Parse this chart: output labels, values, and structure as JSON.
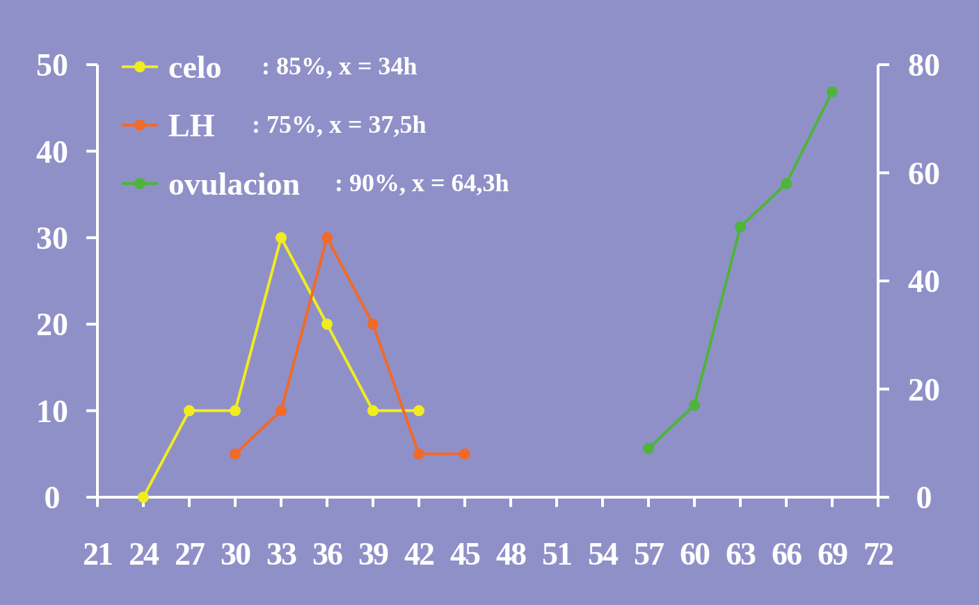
{
  "chart_data": {
    "type": "line",
    "series": [
      {
        "name": "celo",
        "color": "#f0ec20",
        "x": [
          24,
          27,
          30,
          33,
          36,
          39,
          42
        ],
        "values": [
          0,
          10,
          10,
          30,
          20,
          10,
          10
        ]
      },
      {
        "name": "LH",
        "color": "#f06a28",
        "x": [
          30,
          33,
          36,
          39,
          42,
          45
        ],
        "values": [
          5,
          10,
          30,
          20,
          5,
          5
        ]
      },
      {
        "name": "ovulacion",
        "color": "#4eb43c",
        "axis": "y2",
        "x": [
          57,
          60,
          63,
          66,
          69
        ],
        "values": [
          9,
          17,
          50,
          58,
          75
        ]
      }
    ],
    "annotations": [
      ": 85%,  x =  34h",
      ": 75%,  x =  37,5h",
      ": 90%,  x =  64,3h"
    ],
    "xlim": [
      21,
      72
    ],
    "xticks": [
      21,
      24,
      27,
      30,
      33,
      36,
      39,
      42,
      45,
      48,
      51,
      54,
      57,
      60,
      63,
      66,
      69,
      72
    ],
    "ylim": [
      0,
      50
    ],
    "yticks": [
      0,
      10,
      20,
      30,
      40,
      50
    ],
    "y2lim": [
      0,
      80
    ],
    "y2ticks": [
      0,
      20,
      40,
      60,
      80
    ],
    "marker": "circle",
    "legend": "top left",
    "grid": false
  }
}
